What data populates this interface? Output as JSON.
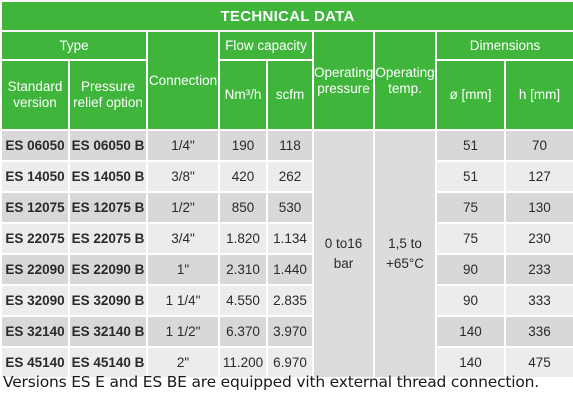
{
  "table": {
    "title": "TECHNICAL DATA",
    "headers": {
      "type": "Type",
      "standard_version": "Standard version",
      "pressure_relief_option": "Pressure relief option",
      "connection": "Connection",
      "flow_capacity": "Flow capacity",
      "nm3h": "Nm³/h",
      "scfm": "scfm",
      "operating_pressure": "Operating pressure",
      "operating_temp": "Operating temp.",
      "dimensions": "Dimensions",
      "diameter": "ø [mm]",
      "height": "h [mm]"
    },
    "operating_pressure_value": "0 to16 bar",
    "operating_temp_value": "1,5 to +65°C",
    "rows": [
      {
        "standard": "ES 06050",
        "relief": "ES 06050 B",
        "connection": "1/4\"",
        "nm3h": "190",
        "scfm": "118",
        "diameter": "51",
        "height": "70"
      },
      {
        "standard": "ES 14050",
        "relief": "ES 14050 B",
        "connection": "3/8\"",
        "nm3h": "420",
        "scfm": "262",
        "diameter": "51",
        "height": "127"
      },
      {
        "standard": "ES 12075",
        "relief": "ES 12075 B",
        "connection": "1/2\"",
        "nm3h": "850",
        "scfm": "530",
        "diameter": "75",
        "height": "130"
      },
      {
        "standard": "ES 22075",
        "relief": "ES 22075 B",
        "connection": "3/4\"",
        "nm3h": "1.820",
        "scfm": "1.134",
        "diameter": "75",
        "height": "230"
      },
      {
        "standard": "ES 22090",
        "relief": "ES 22090 B",
        "connection": "1\"",
        "nm3h": "2.310",
        "scfm": "1.440",
        "diameter": "90",
        "height": "233"
      },
      {
        "standard": "ES 32090",
        "relief": "ES 32090 B",
        "connection": "1 1/4\"",
        "nm3h": "4.550",
        "scfm": "2.835",
        "diameter": "90",
        "height": "333"
      },
      {
        "standard": "ES 32140",
        "relief": "ES 32140 B",
        "connection": "1 1/2\"",
        "nm3h": "6.370",
        "scfm": "3.970",
        "diameter": "140",
        "height": "336"
      },
      {
        "standard": "ES 45140",
        "relief": "ES 45140 B",
        "connection": "2\"",
        "nm3h": "11.200",
        "scfm": "6.970",
        "diameter": "140",
        "height": "475"
      }
    ]
  },
  "note": "Versions ES E and ES BE are equipped vith external thread connection.",
  "colors": {
    "header_green": "#3fb53b",
    "row_dark": "#d8d8d8",
    "row_light": "#ececec"
  }
}
